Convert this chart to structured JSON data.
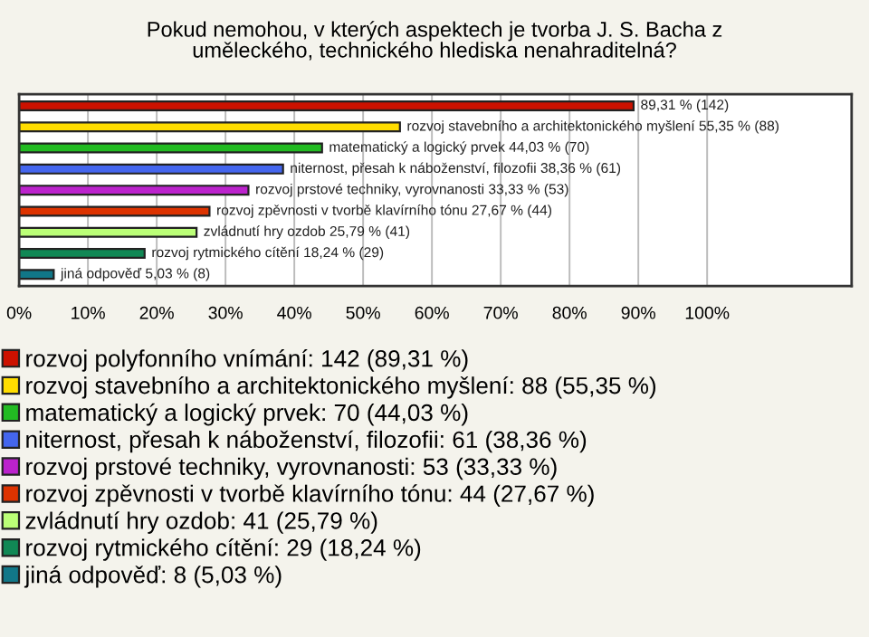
{
  "chart_data": {
    "type": "bar",
    "orientation": "horizontal",
    "title": "Pokud nemohou, v kterých aspektech je tvorba J. S. Bacha z\numěleckého, technického hlediska nenahraditelná?",
    "categories": [
      null,
      null,
      null,
      null,
      null,
      null,
      null,
      null,
      null
    ],
    "series": [
      {
        "name": "rozvoj polyfonního vnímání: 142 (89,31 %)",
        "color": "#cc1100",
        "values": [
          89.31,
          null,
          null,
          null,
          null,
          null,
          null,
          null,
          null
        ],
        "value_labels": [
          "89,31 % (142)",
          null,
          null,
          null,
          null,
          null,
          null,
          null,
          null
        ]
      },
      {
        "name": "rozvoj stavebního a architektonického myšlení: 88 (55,35 %)",
        "color": "#ffdd00",
        "values": [
          null,
          55.35,
          null,
          null,
          null,
          null,
          null,
          null,
          null
        ],
        "value_labels": [
          null,
          "rozvoj stavebního a architektonického myšlení 55,35 % (88)",
          null,
          null,
          null,
          null,
          null,
          null,
          null
        ]
      },
      {
        "name": "matematický a logický prvek: 70 (44,03 %)",
        "color": "#22bb22",
        "values": [
          null,
          null,
          44.03,
          null,
          null,
          null,
          null,
          null,
          null
        ],
        "value_labels": [
          null,
          null,
          "matematický a logický prvek 44,03 % (70)",
          null,
          null,
          null,
          null,
          null,
          null
        ]
      },
      {
        "name": "niternost, přesah k náboženství, filozofii: 61 (38,36 %)",
        "color": "#4466ee",
        "values": [
          null,
          null,
          null,
          38.36,
          null,
          null,
          null,
          null,
          null
        ],
        "value_labels": [
          null,
          null,
          null,
          "niternost, přesah k náboženství, filozofii 38,36 % (61)",
          null,
          null,
          null,
          null,
          null
        ]
      },
      {
        "name": "rozvoj prstové techniky, vyrovnanosti: 53 (33,33 %)",
        "color": "#bb22cc",
        "values": [
          null,
          null,
          null,
          null,
          33.33,
          null,
          null,
          null,
          null
        ],
        "value_labels": [
          null,
          null,
          null,
          null,
          "rozvoj prstové techniky, vyrovnanosti 33,33 % (53)",
          null,
          null,
          null,
          null
        ]
      },
      {
        "name": "rozvoj zpěvnosti v tvorbě klavírního tónu: 44 (27,67 %)",
        "color": "#dd3300",
        "values": [
          null,
          null,
          null,
          null,
          null,
          27.67,
          null,
          null,
          null
        ],
        "value_labels": [
          null,
          null,
          null,
          null,
          null,
          "rozvoj zpěvnosti v tvorbě klavírního tónu 27,67 % (44)",
          null,
          null,
          null
        ]
      },
      {
        "name": "zvládnutí hry ozdob: 41 (25,79 %)",
        "color": "#bbff77",
        "values": [
          null,
          null,
          null,
          null,
          null,
          null,
          25.79,
          null,
          null
        ],
        "value_labels": [
          null,
          null,
          null,
          null,
          null,
          null,
          "zvládnutí hry ozdob 25,79 % (41)",
          null,
          null
        ]
      },
      {
        "name": "rozvoj rytmického cítění: 29 (18,24 %)",
        "color": "#118855",
        "values": [
          null,
          null,
          null,
          null,
          null,
          null,
          null,
          18.24,
          null
        ],
        "value_labels": [
          null,
          null,
          null,
          null,
          null,
          null,
          null,
          "rozvoj rytmického cítění 18,24 % (29)",
          null
        ]
      },
      {
        "name": "jiná odpověď: 8 (5,03 %)",
        "color": "#117788",
        "values": [
          null,
          null,
          null,
          null,
          null,
          null,
          null,
          null,
          5.03
        ],
        "value_labels": [
          null,
          null,
          null,
          null,
          null,
          null,
          null,
          null,
          "jiná odpověď 5,03 % (8)"
        ]
      }
    ],
    "xlim": [
      0,
      121
    ],
    "xticks": [
      {
        "value": 0,
        "label": "0%"
      },
      {
        "value": 10,
        "label": "10%"
      },
      {
        "value": 20,
        "label": "20%"
      },
      {
        "value": 30,
        "label": "30%"
      },
      {
        "value": 40,
        "label": "40%"
      },
      {
        "value": 50,
        "label": "50%"
      },
      {
        "value": 60,
        "label": "60%"
      },
      {
        "value": 70,
        "label": "70%"
      },
      {
        "value": 80,
        "label": "80%"
      },
      {
        "value": 90,
        "label": "90%"
      },
      {
        "value": 100,
        "label": "100%"
      }
    ],
    "grid": "x",
    "legend": "bottom",
    "tick_labels": "x"
  }
}
